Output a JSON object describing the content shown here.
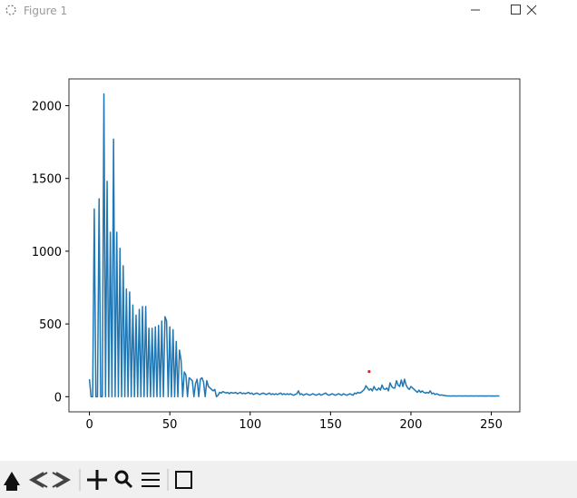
{
  "window": {
    "title": "Figure 1"
  },
  "chart_data": {
    "type": "line",
    "xlim": [
      -12.75,
      267.75
    ],
    "ylim": [
      -104,
      2184
    ],
    "xticks": [
      0,
      50,
      100,
      150,
      200,
      250
    ],
    "yticks": [
      0,
      500,
      1000,
      1500,
      2000
    ],
    "series": [
      {
        "color": "#1f77b4",
        "x": [
          0,
          1,
          2,
          3,
          4,
          5,
          6,
          7,
          8,
          9,
          10,
          11,
          12,
          13,
          14,
          15,
          16,
          17,
          18,
          19,
          20,
          21,
          22,
          23,
          24,
          25,
          26,
          27,
          28,
          29,
          30,
          31,
          32,
          33,
          34,
          35,
          36,
          37,
          38,
          39,
          40,
          41,
          42,
          43,
          44,
          45,
          46,
          47,
          48,
          49,
          50,
          51,
          52,
          53,
          54,
          55,
          56,
          57,
          58,
          59,
          60,
          61,
          62,
          63,
          64,
          65,
          66,
          67,
          68,
          69,
          70,
          71,
          72,
          73,
          74,
          75,
          76,
          77,
          78,
          79,
          80,
          81,
          82,
          83,
          84,
          85,
          86,
          87,
          88,
          89,
          90,
          91,
          92,
          93,
          94,
          95,
          96,
          97,
          98,
          99,
          100,
          101,
          102,
          103,
          104,
          105,
          106,
          107,
          108,
          109,
          110,
          111,
          112,
          113,
          114,
          115,
          116,
          117,
          118,
          119,
          120,
          121,
          122,
          123,
          124,
          125,
          126,
          127,
          128,
          129,
          130,
          131,
          132,
          133,
          134,
          135,
          136,
          137,
          138,
          139,
          140,
          141,
          142,
          143,
          144,
          145,
          146,
          147,
          148,
          149,
          150,
          151,
          152,
          153,
          154,
          155,
          156,
          157,
          158,
          159,
          160,
          161,
          162,
          163,
          164,
          165,
          166,
          167,
          168,
          169,
          170,
          171,
          172,
          173,
          174,
          175,
          176,
          177,
          178,
          179,
          180,
          181,
          182,
          183,
          184,
          185,
          186,
          187,
          188,
          189,
          190,
          191,
          192,
          193,
          194,
          195,
          196,
          197,
          198,
          199,
          200,
          201,
          202,
          203,
          204,
          205,
          206,
          207,
          208,
          209,
          210,
          211,
          212,
          213,
          214,
          215,
          216,
          217,
          218,
          219,
          220,
          221,
          222,
          223,
          224,
          225,
          226,
          227,
          228,
          229,
          230,
          231,
          232,
          233,
          234,
          235,
          236,
          237,
          238,
          239,
          240,
          241,
          242,
          243,
          244,
          245,
          246,
          247,
          248,
          249,
          250,
          251,
          252,
          253,
          254,
          255
        ],
        "values": [
          120,
          0,
          0,
          1290,
          0,
          0,
          1360,
          0,
          0,
          2080,
          0,
          1480,
          0,
          1130,
          0,
          1770,
          0,
          1130,
          0,
          1020,
          0,
          900,
          0,
          740,
          0,
          720,
          0,
          630,
          0,
          560,
          0,
          600,
          0,
          620,
          0,
          620,
          0,
          470,
          0,
          470,
          0,
          480,
          0,
          490,
          0,
          520,
          0,
          550,
          520,
          0,
          480,
          0,
          460,
          0,
          380,
          0,
          320,
          250,
          0,
          170,
          150,
          0,
          130,
          120,
          110,
          0,
          90,
          120,
          0,
          120,
          130,
          100,
          0,
          110,
          70,
          60,
          50,
          40,
          50,
          0,
          10,
          30,
          25,
          35,
          30,
          25,
          30,
          20,
          30,
          25,
          25,
          30,
          20,
          25,
          30,
          20,
          25,
          20,
          25,
          30,
          20,
          25,
          15,
          20,
          25,
          20,
          15,
          20,
          25,
          20,
          15,
          20,
          25,
          15,
          20,
          15,
          20,
          15,
          20,
          25,
          15,
          20,
          15,
          20,
          15,
          20,
          15,
          10,
          15,
          20,
          40,
          15,
          20,
          10,
          15,
          20,
          15,
          10,
          15,
          20,
          15,
          10,
          15,
          20,
          10,
          15,
          20,
          25,
          15,
          10,
          15,
          20,
          15,
          10,
          15,
          20,
          15,
          10,
          20,
          15,
          10,
          15,
          20,
          15,
          10,
          25,
          20,
          30,
          25,
          30,
          40,
          50,
          75,
          60,
          45,
          55,
          40,
          70,
          50,
          45,
          60,
          45,
          80,
          55,
          50,
          60,
          40,
          95,
          70,
          60,
          60,
          110,
          80,
          70,
          115,
          70,
          120,
          80,
          60,
          50,
          70,
          60,
          50,
          40,
          30,
          45,
          30,
          40,
          30,
          25,
          30,
          25,
          40,
          20,
          25,
          15,
          20,
          15,
          10,
          12,
          10,
          8,
          6,
          5,
          5,
          4,
          5,
          5,
          4,
          5,
          5,
          5,
          4,
          5,
          5,
          5,
          4,
          5,
          5,
          4,
          5,
          5,
          4,
          5,
          5,
          4,
          5,
          4,
          5,
          5,
          4,
          5,
          4,
          5,
          5,
          4
        ]
      }
    ],
    "markers": {
      "x": [
        174
      ],
      "y": [
        173
      ],
      "color": "#d62728"
    }
  }
}
